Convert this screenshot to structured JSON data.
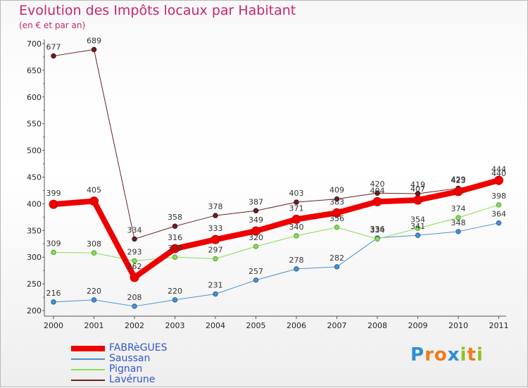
{
  "title": "Evolution des Impôts locaux par Habitant",
  "subtitle": "(en € et par an)",
  "logo": {
    "text": "Proxiti",
    "letters": [
      "P",
      "r",
      "o",
      "x",
      "i",
      "t",
      "i"
    ],
    "colors": [
      "#2c8fd6",
      "#f07a1a",
      "#f07a1a",
      "#2c8fd6",
      "#8fc31f",
      "#f07a1a",
      "#8fc31f"
    ]
  },
  "chart_data": {
    "type": "line",
    "title": "Evolution des Impôts locaux par Habitant",
    "ylabel": "(en € et par an)",
    "xlabel": "",
    "ylim": [
      200,
      700
    ],
    "yticks": [
      200,
      250,
      300,
      350,
      400,
      450,
      500,
      550,
      600,
      650,
      700
    ],
    "categories": [
      "2000",
      "2001",
      "2002",
      "2003",
      "2004",
      "2005",
      "2006",
      "2007",
      "2008",
      "2009",
      "2010",
      "2011"
    ],
    "grid": false,
    "legend_position": "bottom-left",
    "series": [
      {
        "name": "FABRèGUES",
        "color": "#ee0000",
        "values": [
          399,
          405,
          262,
          316,
          333,
          349,
          371,
          383,
          404,
          407,
          423,
          444
        ],
        "labels": [
          "399",
          "405",
          "262",
          "316",
          "333",
          "349",
          "371",
          "383",
          "404",
          "407",
          "423",
          "444"
        ]
      },
      {
        "name": "Saussan",
        "color": "#4a90d0",
        "values": [
          216,
          220,
          208,
          220,
          231,
          257,
          278,
          282,
          336,
          341,
          348,
          364
        ],
        "labels": [
          "216",
          "220",
          "208",
          "220",
          "231",
          "257",
          "278",
          "282",
          "336",
          "341",
          "348",
          "364"
        ]
      },
      {
        "name": "Pignan",
        "color": "#88dd55",
        "values": [
          309,
          308,
          293,
          300,
          297,
          320,
          340,
          356,
          334,
          354,
          374,
          398
        ],
        "labels": [
          "309",
          "308",
          "293",
          "300",
          "297",
          "320",
          "340",
          "356",
          "334",
          "354",
          "374",
          "398"
        ]
      },
      {
        "name": "Lavérune",
        "color": "#6b1f24",
        "values": [
          677,
          689,
          334,
          358,
          378,
          387,
          403,
          409,
          420,
          419,
          429,
          440
        ],
        "labels": [
          "677",
          "689",
          "334",
          "358",
          "378",
          "387",
          "403",
          "409",
          "420",
          "419",
          "429",
          "440"
        ]
      }
    ]
  }
}
